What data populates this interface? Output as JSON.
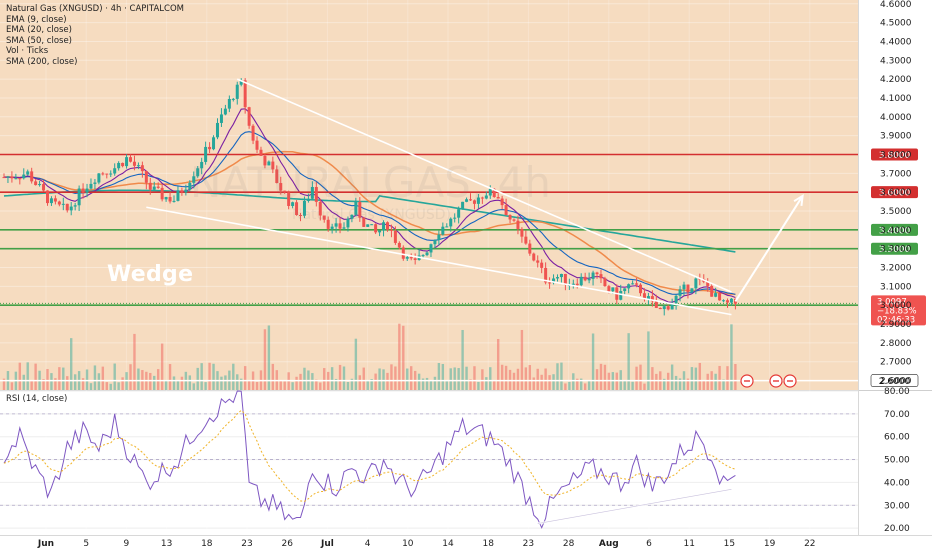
{
  "legend": {
    "symbol": "Natural Gas (XNGUSD) · 4h · CAPITALCOM",
    "ema9": "EMA (9, close)",
    "ema20": "EMA (20, close)",
    "sma50": "SMA (50, close)",
    "vol": "Vol · Ticks",
    "sma200": "SMA (200, close)",
    "rsi": "RSI (14, close)"
  },
  "watermark": {
    "main": "NATURALGAS, 4h",
    "sub": "Natural Gas (XNGUSD)"
  },
  "annotation": "Wedge",
  "colors": {
    "background": "#f6dcc0",
    "rsi_background": "#ffffff",
    "resistance": "#d32f2f",
    "support": "#43a047",
    "sma200": "#26a69a",
    "sma50": "#f08a4b",
    "ema20": "#1565c0",
    "ema9": "#7b1fa2",
    "rsi": "#7e57c2",
    "up": "#26a69a",
    "down": "#ef5350"
  },
  "current_price": {
    "value": "3.0097",
    "change": "−18.83%",
    "countdown": "02:46:33"
  },
  "levels": [
    {
      "value": 3.8,
      "label": "3.8000",
      "color": "#d32f2f"
    },
    {
      "value": 3.6,
      "label": "3.6000",
      "color": "#d32f2f"
    },
    {
      "value": 3.4,
      "label": "3.4000",
      "color": "#43a047"
    },
    {
      "value": 3.3,
      "label": "3.3000",
      "color": "#43a047"
    },
    {
      "value": 3.0,
      "label": "3.0000",
      "color": "#43a047"
    },
    {
      "value": 2.6,
      "label": "2.6000",
      "color": "#ffffff"
    }
  ],
  "chart_data": [
    {
      "type": "candlestick",
      "title": "Natural Gas (XNGUSD) · 4h · CAPITALCOM",
      "ylim": [
        2.55,
        4.62
      ],
      "y_ticks": [
        "4.6000",
        "4.5000",
        "4.4000",
        "4.3000",
        "4.2000",
        "4.1000",
        "4.0000",
        "3.9000",
        "3.8000",
        "3.7000",
        "3.6000",
        "3.5000",
        "3.4000",
        "3.3000",
        "3.2000",
        "3.1000",
        "3.0000",
        "2.9000",
        "2.8000",
        "2.7000",
        "2.6000"
      ],
      "x_ticks": [
        "Jun",
        "5",
        "9",
        "13",
        "18",
        "23",
        "26",
        "Jul",
        "4",
        "10",
        "14",
        "18",
        "23",
        "28",
        "Aug",
        "6",
        "11",
        "15",
        "19",
        "22"
      ],
      "price_path": [
        {
          "t": 0,
          "p": 3.68
        },
        {
          "t": 6,
          "p": 3.7
        },
        {
          "t": 9,
          "p": 3.62
        },
        {
          "t": 12,
          "p": 3.54
        },
        {
          "t": 16,
          "p": 3.5
        },
        {
          "t": 20,
          "p": 3.62
        },
        {
          "t": 24,
          "p": 3.7
        },
        {
          "t": 28,
          "p": 3.73
        },
        {
          "t": 31,
          "p": 3.78
        },
        {
          "t": 34,
          "p": 3.72
        },
        {
          "t": 37,
          "p": 3.62
        },
        {
          "t": 40,
          "p": 3.58
        },
        {
          "t": 43,
          "p": 3.56
        },
        {
          "t": 46,
          "p": 3.64
        },
        {
          "t": 49,
          "p": 3.74
        },
        {
          "t": 52,
          "p": 3.85
        },
        {
          "t": 55,
          "p": 4.0
        },
        {
          "t": 58,
          "p": 4.12
        },
        {
          "t": 60,
          "p": 4.17
        },
        {
          "t": 62,
          "p": 3.95
        },
        {
          "t": 64,
          "p": 3.82
        },
        {
          "t": 67,
          "p": 3.74
        },
        {
          "t": 70,
          "p": 3.62
        },
        {
          "t": 73,
          "p": 3.52
        },
        {
          "t": 75,
          "p": 3.48
        },
        {
          "t": 78,
          "p": 3.63
        },
        {
          "t": 80,
          "p": 3.5
        },
        {
          "t": 83,
          "p": 3.4
        },
        {
          "t": 86,
          "p": 3.42
        },
        {
          "t": 89,
          "p": 3.52
        },
        {
          "t": 91,
          "p": 3.44
        },
        {
          "t": 94,
          "p": 3.38
        },
        {
          "t": 97,
          "p": 3.43
        },
        {
          "t": 99,
          "p": 3.35
        },
        {
          "t": 102,
          "p": 3.24
        },
        {
          "t": 104,
          "p": 3.22
        },
        {
          "t": 107,
          "p": 3.3
        },
        {
          "t": 110,
          "p": 3.4
        },
        {
          "t": 113,
          "p": 3.45
        },
        {
          "t": 116,
          "p": 3.52
        },
        {
          "t": 119,
          "p": 3.56
        },
        {
          "t": 122,
          "p": 3.6
        },
        {
          "t": 125,
          "p": 3.58
        },
        {
          "t": 128,
          "p": 3.46
        },
        {
          "t": 131,
          "p": 3.35
        },
        {
          "t": 134,
          "p": 3.25
        },
        {
          "t": 137,
          "p": 3.14
        },
        {
          "t": 140,
          "p": 3.15
        },
        {
          "t": 143,
          "p": 3.12
        },
        {
          "t": 146,
          "p": 3.14
        },
        {
          "t": 149,
          "p": 3.16
        },
        {
          "t": 152,
          "p": 3.1
        },
        {
          "t": 155,
          "p": 3.05
        },
        {
          "t": 158,
          "p": 3.1
        },
        {
          "t": 161,
          "p": 3.08
        },
        {
          "t": 164,
          "p": 3.0
        },
        {
          "t": 166,
          "p": 2.97
        },
        {
          "t": 169,
          "p": 3.02
        },
        {
          "t": 172,
          "p": 3.08
        },
        {
          "t": 175,
          "p": 3.13
        },
        {
          "t": 178,
          "p": 3.1
        },
        {
          "t": 180,
          "p": 3.04
        },
        {
          "t": 182,
          "p": 3.0
        },
        {
          "t": 185,
          "p": 3.01
        }
      ],
      "wedge": {
        "upper": [
          [
            59,
            4.2
          ],
          [
            184,
            3.07
          ]
        ],
        "lower": [
          [
            36,
            3.52
          ],
          [
            184,
            2.95
          ]
        ]
      },
      "projection": [
        [
          185,
          3.02
        ],
        [
          202,
          3.58
        ]
      ]
    },
    {
      "type": "line",
      "title": "RSI (14, close)",
      "ylim": [
        17,
        80
      ],
      "y_ticks": [
        "80.00",
        "70.00",
        "60.00",
        "50.00",
        "40.00",
        "30.00",
        "20.00"
      ],
      "rsi_path": [
        {
          "t": 0,
          "v": 52
        },
        {
          "t": 4,
          "v": 60
        },
        {
          "t": 8,
          "v": 45
        },
        {
          "t": 12,
          "v": 35
        },
        {
          "t": 16,
          "v": 55
        },
        {
          "t": 20,
          "v": 62
        },
        {
          "t": 24,
          "v": 55
        },
        {
          "t": 28,
          "v": 66
        },
        {
          "t": 32,
          "v": 52
        },
        {
          "t": 36,
          "v": 40
        },
        {
          "t": 40,
          "v": 45
        },
        {
          "t": 44,
          "v": 50
        },
        {
          "t": 48,
          "v": 62
        },
        {
          "t": 52,
          "v": 70
        },
        {
          "t": 55,
          "v": 73
        },
        {
          "t": 58,
          "v": 78
        },
        {
          "t": 60,
          "v": 79
        },
        {
          "t": 62,
          "v": 38
        },
        {
          "t": 65,
          "v": 32
        },
        {
          "t": 68,
          "v": 30
        },
        {
          "t": 72,
          "v": 24
        },
        {
          "t": 75,
          "v": 22
        },
        {
          "t": 78,
          "v": 48
        },
        {
          "t": 80,
          "v": 42
        },
        {
          "t": 84,
          "v": 38
        },
        {
          "t": 88,
          "v": 46
        },
        {
          "t": 92,
          "v": 42
        },
        {
          "t": 96,
          "v": 50
        },
        {
          "t": 100,
          "v": 40
        },
        {
          "t": 104,
          "v": 37
        },
        {
          "t": 108,
          "v": 45
        },
        {
          "t": 112,
          "v": 55
        },
        {
          "t": 116,
          "v": 64
        },
        {
          "t": 120,
          "v": 62
        },
        {
          "t": 124,
          "v": 58
        },
        {
          "t": 128,
          "v": 48
        },
        {
          "t": 132,
          "v": 35
        },
        {
          "t": 136,
          "v": 24
        },
        {
          "t": 140,
          "v": 34
        },
        {
          "t": 144,
          "v": 40
        },
        {
          "t": 148,
          "v": 46
        },
        {
          "t": 152,
          "v": 44
        },
        {
          "t": 156,
          "v": 40
        },
        {
          "t": 160,
          "v": 48
        },
        {
          "t": 164,
          "v": 38
        },
        {
          "t": 168,
          "v": 45
        },
        {
          "t": 172,
          "v": 55
        },
        {
          "t": 176,
          "v": 60
        },
        {
          "t": 180,
          "v": 50
        },
        {
          "t": 182,
          "v": 38
        },
        {
          "t": 185,
          "v": 46
        }
      ],
      "trendline": [
        [
          135,
          22
        ],
        [
          184,
          37
        ]
      ],
      "levels": [
        70,
        50,
        30
      ]
    }
  ]
}
